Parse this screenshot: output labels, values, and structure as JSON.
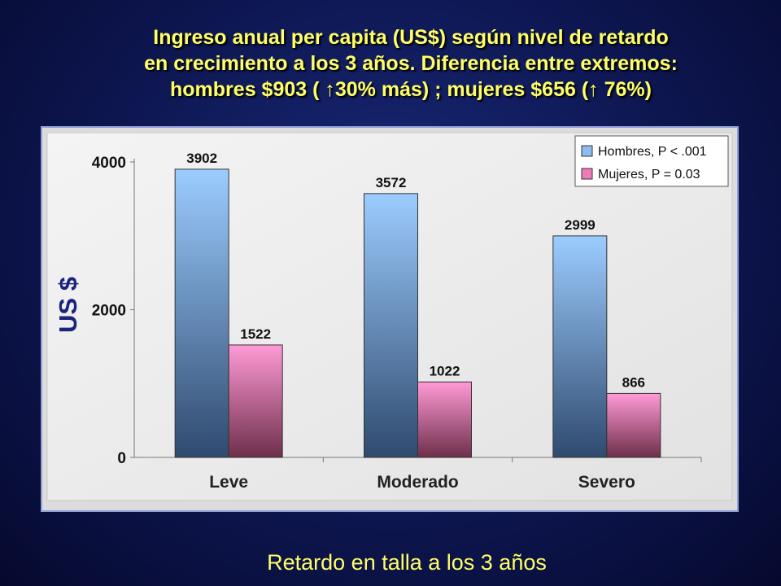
{
  "title_lines": [
    "Ingreso anual per capita (US$) según nivel de retardo",
    "en crecimiento a los 3 años. Diferencia entre extremos:",
    "hombres $903 ( ↑30% más) ; mujeres $656 (↑ 76%)"
  ],
  "footer": "Retardo en talla a los 3 años",
  "chart_data": {
    "type": "bar",
    "categories": [
      "Leve",
      "Moderado",
      "Severo"
    ],
    "series": [
      {
        "name": "Hombres, P < .001",
        "values": [
          3902,
          3572,
          2999
        ],
        "color": "#8dbcf0"
      },
      {
        "name": "Mujeres, P = 0.03",
        "values": [
          1522,
          1022,
          866
        ],
        "color": "#f07ab8"
      }
    ],
    "ylabel": "US $",
    "ylim": [
      0,
      4000
    ],
    "yticks": [
      0,
      2000,
      4000
    ],
    "grid": false,
    "legend_position": "top-right"
  },
  "colors": {
    "title": "#ffff66",
    "ylabel": "#1a237e",
    "background": "#0d1650"
  }
}
